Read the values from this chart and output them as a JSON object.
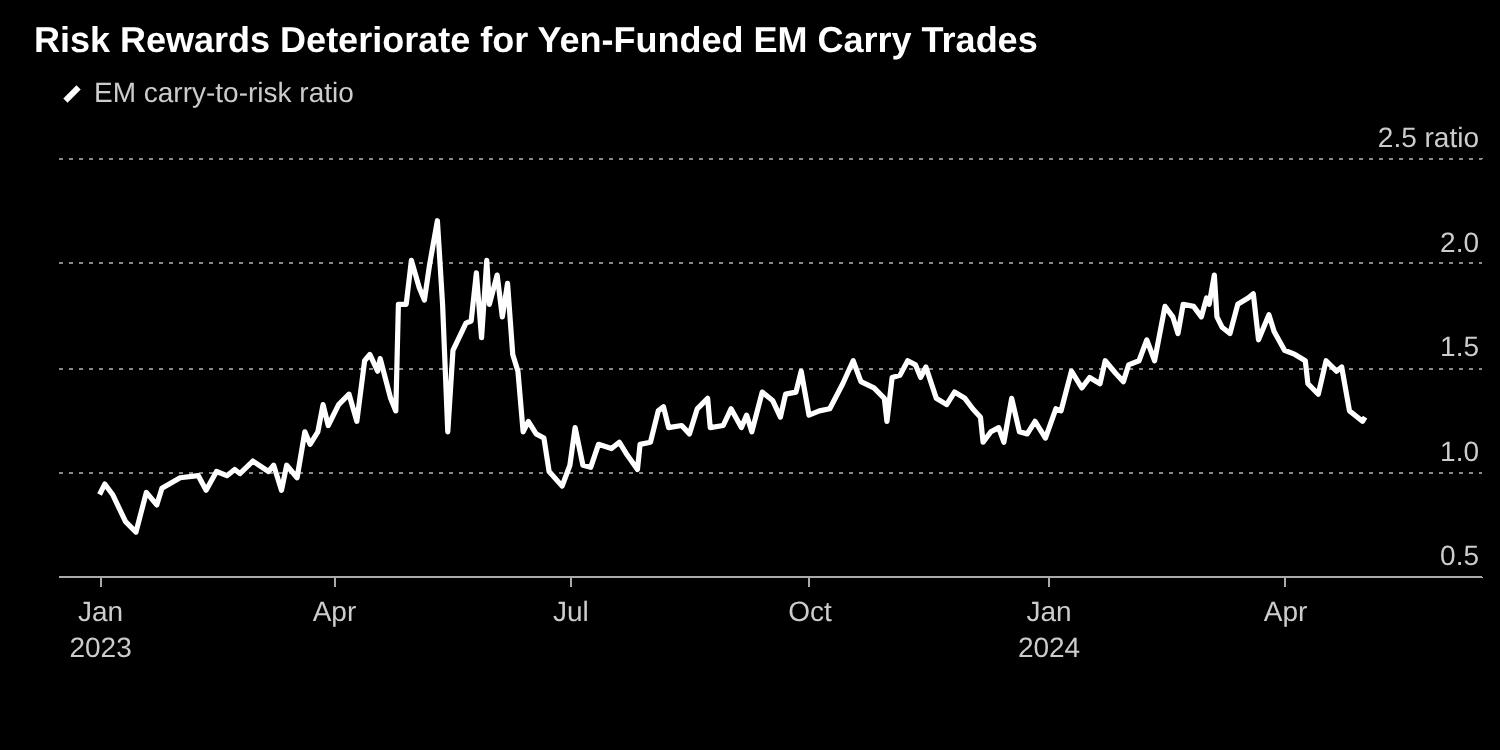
{
  "chart_data": {
    "type": "line",
    "title": "Risk Rewards Deteriorate for Yen-Funded EM Carry Trades",
    "x": [
      "2023-01-01",
      "2023-01-03",
      "2023-01-06",
      "2023-01-11",
      "2023-01-15",
      "2023-01-19",
      "2023-01-23",
      "2023-01-25",
      "2023-02-01",
      "2023-02-08",
      "2023-02-11",
      "2023-02-15",
      "2023-02-19",
      "2023-02-22",
      "2023-02-24",
      "2023-03-01",
      "2023-03-07",
      "2023-03-09",
      "2023-03-12",
      "2023-03-14",
      "2023-03-18",
      "2023-03-21",
      "2023-03-23",
      "2023-03-26",
      "2023-03-28",
      "2023-03-30",
      "2023-04-03",
      "2023-04-07",
      "2023-04-10",
      "2023-04-13",
      "2023-04-15",
      "2023-04-18",
      "2023-04-19",
      "2023-04-23",
      "2023-04-25",
      "2023-04-26",
      "2023-04-29",
      "2023-05-01",
      "2023-05-04",
      "2023-05-06",
      "2023-05-08",
      "2023-05-11",
      "2023-05-13",
      "2023-05-15",
      "2023-05-17",
      "2023-05-22",
      "2023-05-24",
      "2023-05-26",
      "2023-05-28",
      "2023-05-30",
      "2023-05-31",
      "2023-06-03",
      "2023-06-05",
      "2023-06-07",
      "2023-06-09",
      "2023-06-11",
      "2023-06-13",
      "2023-06-15",
      "2023-06-18",
      "2023-06-21",
      "2023-06-23",
      "2023-06-28",
      "2023-07-01",
      "2023-07-03",
      "2023-07-06",
      "2023-07-09",
      "2023-07-12",
      "2023-07-17",
      "2023-07-20",
      "2023-07-23",
      "2023-07-27",
      "2023-07-28",
      "2023-08-01",
      "2023-08-04",
      "2023-08-06",
      "2023-08-08",
      "2023-08-13",
      "2023-08-16",
      "2023-08-19",
      "2023-08-23",
      "2023-08-24",
      "2023-08-29",
      "2023-09-01",
      "2023-09-05",
      "2023-09-07",
      "2023-09-09",
      "2023-09-13",
      "2023-09-17",
      "2023-09-20",
      "2023-09-22",
      "2023-09-26",
      "2023-09-28",
      "2023-10-01",
      "2023-10-05",
      "2023-10-09",
      "2023-10-14",
      "2023-10-18",
      "2023-10-21",
      "2023-10-26",
      "2023-10-30",
      "2023-10-31",
      "2023-11-02",
      "2023-11-05",
      "2023-11-08",
      "2023-11-11",
      "2023-11-13",
      "2023-11-15",
      "2023-11-19",
      "2023-11-23",
      "2023-11-26",
      "2023-11-30",
      "2023-12-03",
      "2023-12-06",
      "2023-12-07",
      "2023-12-10",
      "2023-12-13",
      "2023-12-15",
      "2023-12-18",
      "2023-12-21",
      "2023-12-24",
      "2023-12-27",
      "2023-12-31",
      "2024-01-04",
      "2024-01-06",
      "2024-01-10",
      "2024-01-14",
      "2024-01-17",
      "2024-01-21",
      "2024-01-23",
      "2024-01-27",
      "2024-01-30",
      "2024-02-01",
      "2024-02-05",
      "2024-02-08",
      "2024-02-11",
      "2024-02-15",
      "2024-02-18",
      "2024-02-20",
      "2024-02-22",
      "2024-02-26",
      "2024-02-29",
      "2024-03-02",
      "2024-03-03",
      "2024-03-05",
      "2024-03-06",
      "2024-03-08",
      "2024-03-11",
      "2024-03-14",
      "2024-03-18",
      "2024-03-20",
      "2024-03-22",
      "2024-03-26",
      "2024-03-28",
      "2024-04-01",
      "2024-04-05",
      "2024-04-09",
      "2024-04-10",
      "2024-04-14",
      "2024-04-17",
      "2024-04-21",
      "2024-04-23",
      "2024-04-26",
      "2024-04-28",
      "2024-05-01",
      "2024-05-02"
    ],
    "series": [
      {
        "name": "EM carry-to-risk ratio",
        "color": "#ffffff",
        "values": [
          0.89,
          0.94,
          0.89,
          0.76,
          0.71,
          0.9,
          0.84,
          0.92,
          0.97,
          0.98,
          0.91,
          1.0,
          0.98,
          1.01,
          0.99,
          1.05,
          1.0,
          1.03,
          0.91,
          1.03,
          0.97,
          1.19,
          1.13,
          1.19,
          1.32,
          1.22,
          1.32,
          1.37,
          1.24,
          1.53,
          1.56,
          1.48,
          1.54,
          1.35,
          1.29,
          1.8,
          1.8,
          2.01,
          1.88,
          1.82,
          1.99,
          2.2,
          1.8,
          1.19,
          1.58,
          1.71,
          1.72,
          1.95,
          1.64,
          2.01,
          1.8,
          1.94,
          1.74,
          1.9,
          1.56,
          1.48,
          1.19,
          1.24,
          1.18,
          1.16,
          1.0,
          0.93,
          1.03,
          1.21,
          1.03,
          1.02,
          1.13,
          1.11,
          1.14,
          1.08,
          1.01,
          1.13,
          1.14,
          1.29,
          1.31,
          1.21,
          1.22,
          1.18,
          1.3,
          1.35,
          1.21,
          1.22,
          1.3,
          1.21,
          1.27,
          1.19,
          1.38,
          1.34,
          1.26,
          1.37,
          1.38,
          1.48,
          1.27,
          1.29,
          1.3,
          1.42,
          1.53,
          1.43,
          1.4,
          1.35,
          1.24,
          1.45,
          1.46,
          1.53,
          1.51,
          1.45,
          1.5,
          1.35,
          1.32,
          1.38,
          1.35,
          1.3,
          1.26,
          1.14,
          1.19,
          1.21,
          1.14,
          1.35,
          1.19,
          1.18,
          1.24,
          1.16,
          1.3,
          1.29,
          1.48,
          1.4,
          1.45,
          1.42,
          1.53,
          1.47,
          1.43,
          1.51,
          1.53,
          1.63,
          1.53,
          1.79,
          1.74,
          1.66,
          1.8,
          1.79,
          1.74,
          1.83,
          1.8,
          1.94,
          1.74,
          1.69,
          1.66,
          1.8,
          1.83,
          1.85,
          1.63,
          1.75,
          1.67,
          1.58,
          1.56,
          1.53,
          1.42,
          1.37,
          1.53,
          1.48,
          1.5,
          1.29,
          1.27,
          1.24,
          1.26
        ]
      }
    ],
    "xlim": [
      "2022-12-16",
      "2024-06-16"
    ],
    "xticks": [
      {
        "value": "2023-01-01",
        "label": "Jan\n2023"
      },
      {
        "value": "2023-04-01",
        "label": "Apr"
      },
      {
        "value": "2023-07-01",
        "label": "Jul"
      },
      {
        "value": "2023-10-01",
        "label": "Oct"
      },
      {
        "value": "2024-01-01",
        "label": "Jan\n2024"
      },
      {
        "value": "2024-04-01",
        "label": "Apr"
      }
    ],
    "ylim": [
      0.5,
      2.5
    ],
    "yticks": [
      0.5,
      {
        "value": 1,
        "label": "1.0"
      },
      1.5,
      {
        "value": 2,
        "label": "2.0"
      },
      {
        "value": 2.5,
        "label": "2.5 ratio"
      }
    ],
    "grid": "y",
    "legend": "top left"
  }
}
